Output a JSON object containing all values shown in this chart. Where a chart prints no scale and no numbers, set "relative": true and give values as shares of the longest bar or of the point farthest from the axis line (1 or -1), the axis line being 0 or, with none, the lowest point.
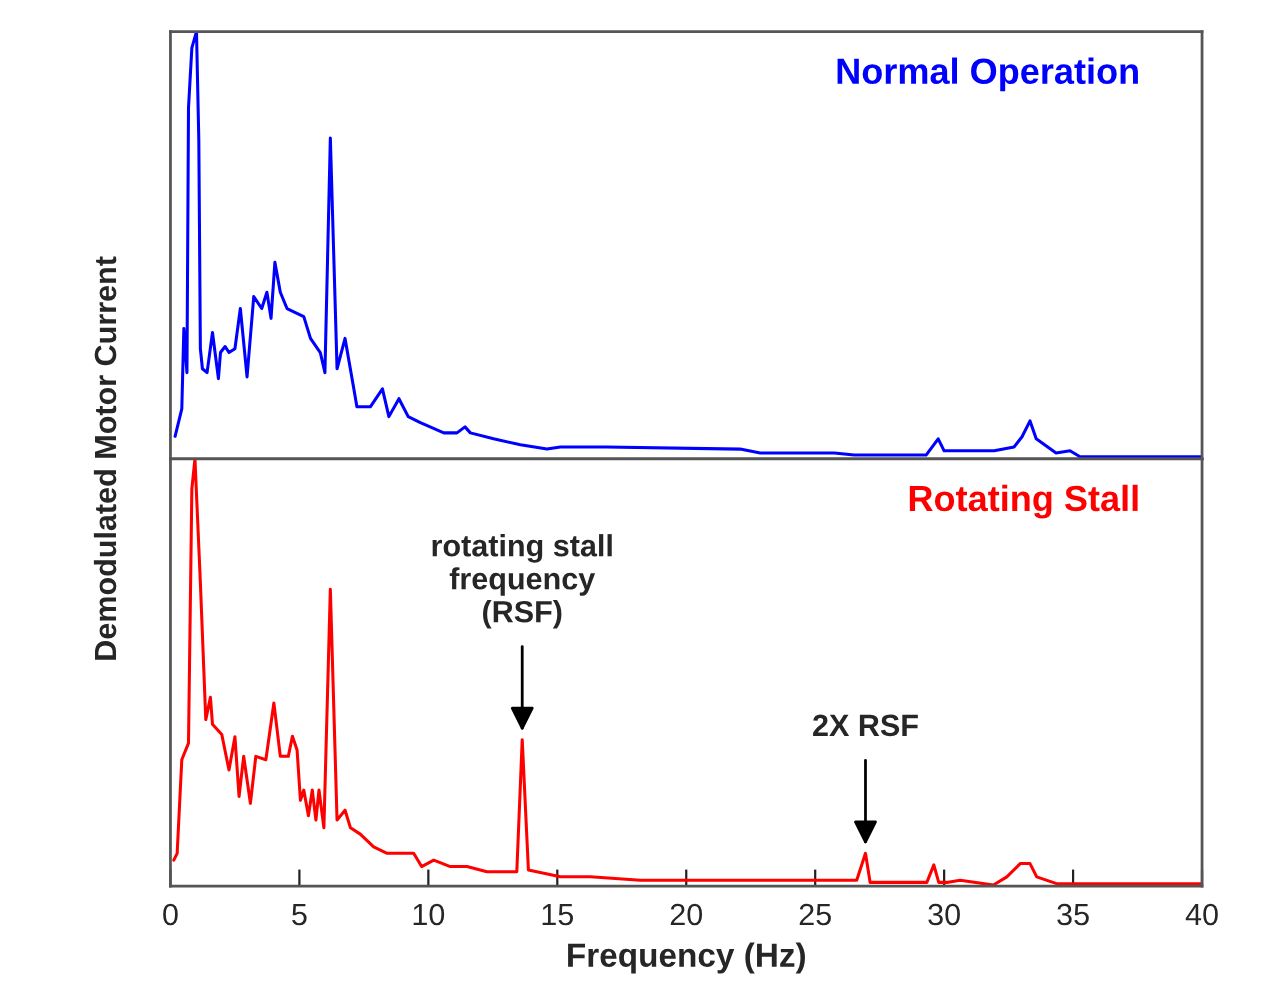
{
  "chart_data": [
    {
      "type": "line",
      "relative": true,
      "ylabel": "Demodulated Motor Current",
      "xlim": [
        0,
        40
      ],
      "tick_labels": false,
      "legend": false,
      "grid": false,
      "series": [
        {
          "name": "Normal Operation",
          "color": "#0000ff",
          "x": [
            0.18,
            0.44,
            0.52,
            0.64,
            0.7,
            0.83,
            1.01,
            1.1,
            1.16,
            1.24,
            1.42,
            1.63,
            1.86,
            1.94,
            2.12,
            2.27,
            2.5,
            2.71,
            2.97,
            3.23,
            3.54,
            3.74,
            3.9,
            4.05,
            4.26,
            4.52,
            5.17,
            5.43,
            5.81,
            5.99,
            6.2,
            6.46,
            6.77,
            7.11,
            7.23,
            7.75,
            8.22,
            8.47,
            8.86,
            9.22,
            9.69,
            10.6,
            11.11,
            11.42,
            11.63,
            12.53,
            13.57,
            14.6,
            15.12,
            16.9,
            22.09,
            22.87,
            25.74,
            26.51,
            29.3,
            29.77,
            30.0,
            31.94,
            32.71,
            33.02,
            33.33,
            33.57,
            34.34,
            34.88,
            35.27,
            40.0
          ],
          "values": [
            0.053,
            0.117,
            0.305,
            0.202,
            0.822,
            0.962,
            1.0,
            0.746,
            0.258,
            0.211,
            0.202,
            0.296,
            0.188,
            0.249,
            0.263,
            0.249,
            0.258,
            0.352,
            0.192,
            0.38,
            0.352,
            0.39,
            0.329,
            0.46,
            0.39,
            0.352,
            0.333,
            0.282,
            0.249,
            0.202,
            0.751,
            0.211,
            0.282,
            0.164,
            0.122,
            0.122,
            0.164,
            0.099,
            0.141,
            0.099,
            0.085,
            0.061,
            0.061,
            0.075,
            0.061,
            0.047,
            0.033,
            0.023,
            0.028,
            0.028,
            0.023,
            0.014,
            0.014,
            0.009,
            0.009,
            0.047,
            0.019,
            0.019,
            0.028,
            0.052,
            0.089,
            0.047,
            0.014,
            0.019,
            0.005,
            0.005
          ]
        }
      ]
    },
    {
      "type": "line",
      "relative": true,
      "xlabel": "Frequency (Hz)",
      "xlim": [
        0,
        40
      ],
      "xticks": [
        0,
        5,
        10,
        15,
        20,
        25,
        30,
        35,
        40
      ],
      "tick_labels": "x",
      "legend": false,
      "grid": false,
      "annotations": [
        {
          "text": "rotating stall\nfrequency\n(RSF)",
          "x": 13.64,
          "y": 0.343
        },
        {
          "text": "2X RSF",
          "x": 26.95,
          "y": 0.077
        }
      ],
      "series": [
        {
          "name": "Rotating Stall",
          "color": "#ff0000",
          "x": [
            0.13,
            0.26,
            0.44,
            0.7,
            0.83,
            0.95,
            1.16,
            1.37,
            1.55,
            1.63,
            1.99,
            2.27,
            2.5,
            2.66,
            2.84,
            3.1,
            3.31,
            3.7,
            4.01,
            4.26,
            4.57,
            4.73,
            4.91,
            5.04,
            5.17,
            5.35,
            5.5,
            5.64,
            5.76,
            5.95,
            6.2,
            6.46,
            6.77,
            6.98,
            7.36,
            7.88,
            8.4,
            9.43,
            9.74,
            10.21,
            10.85,
            11.5,
            12.27,
            13.43,
            13.64,
            13.88,
            15.12,
            16.28,
            18.22,
            22.09,
            26.61,
            26.95,
            27.13,
            29.33,
            29.6,
            29.79,
            30.1,
            30.62,
            31.91,
            32.43,
            32.95,
            33.33,
            33.59,
            34.36,
            40.0
          ],
          "values": [
            0.061,
            0.077,
            0.296,
            0.335,
            0.93,
            1.0,
            0.711,
            0.39,
            0.442,
            0.379,
            0.355,
            0.272,
            0.35,
            0.21,
            0.304,
            0.194,
            0.304,
            0.296,
            0.429,
            0.304,
            0.304,
            0.351,
            0.319,
            0.201,
            0.225,
            0.165,
            0.225,
            0.155,
            0.225,
            0.137,
            0.695,
            0.155,
            0.178,
            0.137,
            0.122,
            0.092,
            0.077,
            0.077,
            0.046,
            0.061,
            0.046,
            0.046,
            0.034,
            0.034,
            0.343,
            0.038,
            0.022,
            0.022,
            0.014,
            0.014,
            0.014,
            0.077,
            0.009,
            0.009,
            0.05,
            0.009,
            0.009,
            0.014,
            0.003,
            0.022,
            0.053,
            0.053,
            0.022,
            0.006,
            0.006
          ]
        }
      ]
    }
  ]
}
